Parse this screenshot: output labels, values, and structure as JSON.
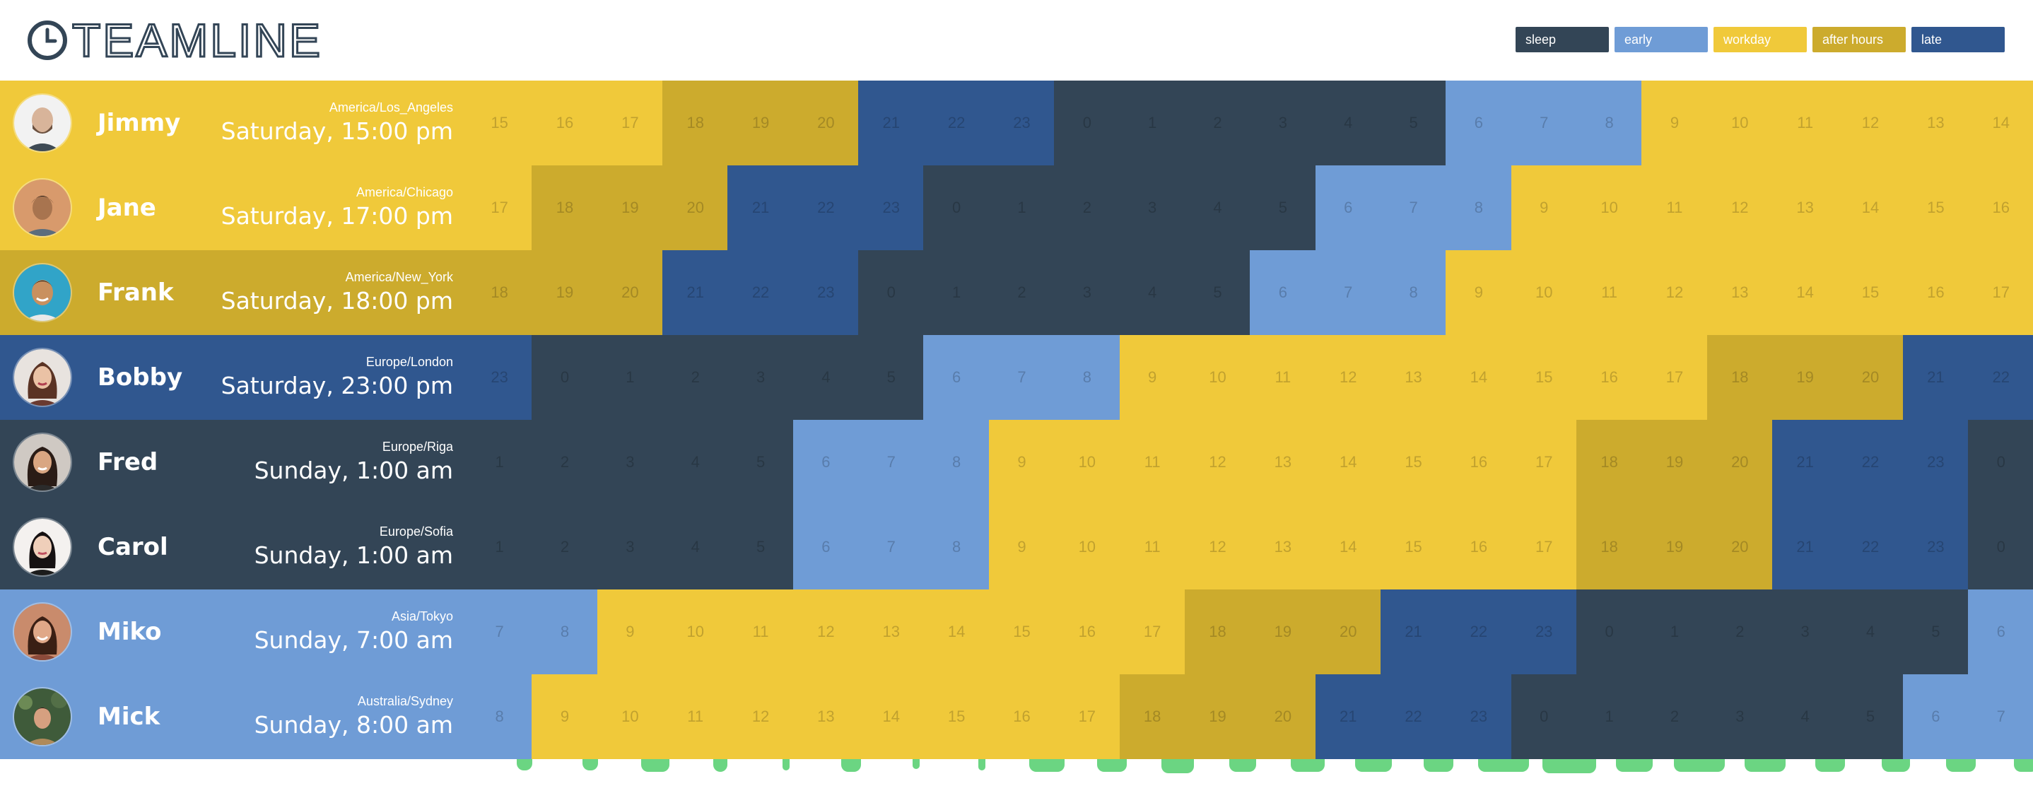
{
  "app": {
    "logo_text": "TEAMLINE"
  },
  "legend": [
    {
      "label": "sleep",
      "color": "#334556"
    },
    {
      "label": "early",
      "color": "#6f9cd6"
    },
    {
      "label": "workday",
      "color": "#f0c93a"
    },
    {
      "label": "after hours",
      "color": "#ccab2d"
    },
    {
      "label": "late",
      "color": "#30578f"
    }
  ],
  "colors": {
    "sleep": "#334556",
    "early": "#6f9cd6",
    "workday": "#f0c93a",
    "after_hours": "#ccab2d",
    "late": "#30578f",
    "activity": "#6bd582"
  },
  "people": [
    {
      "name": "Jimmy",
      "timezone": "America/Los_Angeles",
      "local_time": "Saturday, 15:00 pm",
      "avatar": "man-bald-beard",
      "hours": [
        "15",
        "16",
        "17",
        "18",
        "19",
        "20",
        "21",
        "22",
        "23",
        "0",
        "1",
        "2",
        "3",
        "4",
        "5",
        "6",
        "7",
        "8",
        "9",
        "10",
        "11",
        "12",
        "13",
        "14"
      ]
    },
    {
      "name": "Jane",
      "timezone": "America/Chicago",
      "local_time": "Saturday, 17:00 pm",
      "avatar": "man-dark-hair",
      "hours": [
        "17",
        "18",
        "19",
        "20",
        "21",
        "22",
        "23",
        "0",
        "1",
        "2",
        "3",
        "4",
        "5",
        "6",
        "7",
        "8",
        "9",
        "10",
        "11",
        "12",
        "13",
        "14",
        "15",
        "16"
      ]
    },
    {
      "name": "Frank",
      "timezone": "America/New_York",
      "local_time": "Saturday, 18:00 pm",
      "avatar": "man-smiling",
      "hours": [
        "18",
        "19",
        "20",
        "21",
        "22",
        "23",
        "0",
        "1",
        "2",
        "3",
        "4",
        "5",
        "6",
        "7",
        "8",
        "9",
        "10",
        "11",
        "12",
        "13",
        "14",
        "15",
        "16",
        "17"
      ]
    },
    {
      "name": "Bobby",
      "timezone": "Europe/London",
      "local_time": "Saturday, 23:00 pm",
      "avatar": "woman-brunette",
      "hours": [
        "23",
        "0",
        "1",
        "2",
        "3",
        "4",
        "5",
        "6",
        "7",
        "8",
        "9",
        "10",
        "11",
        "12",
        "13",
        "14",
        "15",
        "16",
        "17",
        "18",
        "19",
        "20",
        "21",
        "22"
      ]
    },
    {
      "name": "Fred",
      "timezone": "Europe/Riga",
      "local_time": "Sunday, 1:00 am",
      "avatar": "woman-long-hair",
      "hours": [
        "1",
        "2",
        "3",
        "4",
        "5",
        "6",
        "7",
        "8",
        "9",
        "10",
        "11",
        "12",
        "13",
        "14",
        "15",
        "16",
        "17",
        "18",
        "19",
        "20",
        "21",
        "22",
        "23",
        "0"
      ]
    },
    {
      "name": "Carol",
      "timezone": "Europe/Sofia",
      "local_time": "Sunday, 1:00 am",
      "avatar": "woman-dark-hair",
      "hours": [
        "1",
        "2",
        "3",
        "4",
        "5",
        "6",
        "7",
        "8",
        "9",
        "10",
        "11",
        "12",
        "13",
        "14",
        "15",
        "16",
        "17",
        "18",
        "19",
        "20",
        "21",
        "22",
        "23",
        "0"
      ]
    },
    {
      "name": "Miko",
      "timezone": "Asia/Tokyo",
      "local_time": "Sunday, 7:00 am",
      "avatar": "woman-smiling",
      "hours": [
        "7",
        "8",
        "9",
        "10",
        "11",
        "12",
        "13",
        "14",
        "15",
        "16",
        "17",
        "18",
        "19",
        "20",
        "21",
        "22",
        "23",
        "0",
        "1",
        "2",
        "3",
        "4",
        "5",
        "6"
      ]
    },
    {
      "name": "Mick",
      "timezone": "Australia/Sydney",
      "local_time": "Sunday, 8:00 am",
      "avatar": "person-outdoors",
      "hours": [
        "8",
        "9",
        "10",
        "11",
        "12",
        "13",
        "14",
        "15",
        "16",
        "17",
        "18",
        "19",
        "20",
        "21",
        "22",
        "23",
        "0",
        "1",
        "2",
        "3",
        "4",
        "5",
        "6",
        "7"
      ]
    }
  ]
}
